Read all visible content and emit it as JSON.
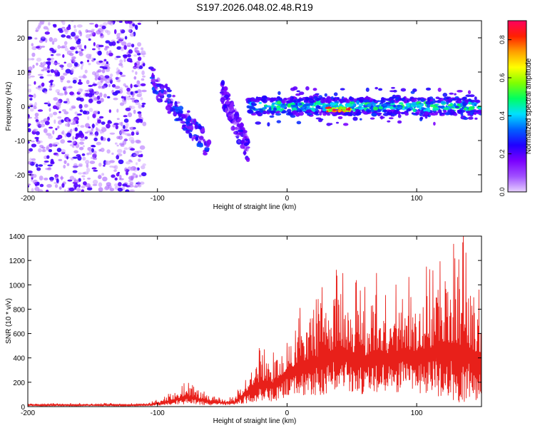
{
  "title": "S197.2026.048.02.48.R19",
  "colors": {
    "snr_line": "#e8201a",
    "spectro_low": "#e6d0ff",
    "spectro_mid": "#7a00ff",
    "spectro_high": "#ff0000"
  },
  "chart_data": [
    {
      "type": "heatmap",
      "xlabel": "Height of straight line (km)",
      "ylabel": "Frequency (Hz)",
      "xlim": [
        -200,
        150
      ],
      "ylim": [
        -25,
        25
      ],
      "xticks": [
        -200,
        -100,
        0,
        100
      ],
      "yticks": [
        -20,
        -10,
        0,
        10,
        20
      ],
      "colorbar": {
        "label": "Normalized spectral amplitude",
        "range": [
          0,
          0.9
        ],
        "ticks": [
          "0.0",
          "0.2",
          "0.4",
          "0.6",
          "0.8"
        ],
        "stops": [
          "#e6d0ff",
          "#a050ff",
          "#7a00ff",
          "#2000ff",
          "#0060ff",
          "#00e0ff",
          "#00ff60",
          "#80ff00",
          "#ffff00",
          "#ffa000",
          "#ff2000",
          "#ff0060"
        ]
      },
      "regions": [
        {
          "name": "scattered noise",
          "x": [
            -200,
            -110
          ],
          "y": [
            -25,
            25
          ],
          "amplitude": 0.1
        },
        {
          "name": "descending branch",
          "x": [
            -105,
            -60
          ],
          "y_start": 8,
          "y_end": -12,
          "amplitude": 0.25
        },
        {
          "name": "second branch",
          "x": [
            -50,
            -30
          ],
          "y_start": 4,
          "y_end": -13,
          "amplitude": 0.2
        },
        {
          "name": "main band",
          "x": [
            -30,
            150
          ],
          "y_center": 0,
          "half_width": 2.5,
          "amplitude": 0.45
        },
        {
          "name": "band peak",
          "x": [
            30,
            50
          ],
          "y_center": -1,
          "amplitude": 0.85
        }
      ]
    },
    {
      "type": "line",
      "xlabel": "Height of straight line (km)",
      "ylabel": "SNR (10 * v/v)",
      "xlim": [
        -200,
        150
      ],
      "ylim": [
        0,
        1400
      ],
      "xticks": [
        -200,
        -100,
        0,
        100
      ],
      "yticks": [
        0,
        200,
        400,
        600,
        800,
        1000,
        1200,
        1400
      ],
      "envelope": {
        "x": [
          -200,
          -120,
          -105,
          -95,
          -85,
          -78,
          -70,
          -60,
          -50,
          -40,
          -35,
          -28,
          -20,
          -10,
          0,
          10,
          20,
          30,
          40,
          50,
          60,
          70,
          80,
          90,
          100,
          110,
          120,
          130,
          140,
          150
        ],
        "max": [
          30,
          30,
          40,
          90,
          160,
          220,
          180,
          110,
          80,
          90,
          230,
          380,
          520,
          470,
          720,
          850,
          980,
          1020,
          1240,
          1060,
          1000,
          1130,
          1040,
          1180,
          1100,
          1200,
          1380,
          1420,
          1330,
          1080
        ],
        "min": [
          5,
          5,
          5,
          10,
          15,
          20,
          15,
          10,
          10,
          10,
          20,
          30,
          50,
          40,
          80,
          90,
          90,
          100,
          120,
          110,
          100,
          110,
          100,
          110,
          100,
          90,
          80,
          30,
          40,
          60
        ]
      },
      "peak": {
        "x": 136,
        "y": 1420
      }
    }
  ]
}
